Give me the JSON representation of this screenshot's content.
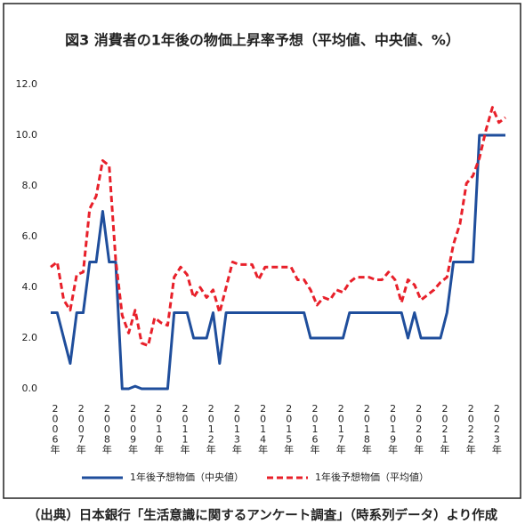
{
  "chart_data": {
    "type": "line",
    "title": "図3 消費者の1年後の物価上昇率予想（平均値、中央値、%）",
    "categories": [
      "2006年",
      null,
      null,
      null,
      "2007年",
      null,
      null,
      null,
      "2008年",
      null,
      null,
      null,
      "2009年",
      null,
      null,
      null,
      "2010年",
      null,
      null,
      null,
      "2011年",
      null,
      null,
      null,
      "2012年",
      null,
      null,
      null,
      "2013年",
      null,
      null,
      null,
      "2014年",
      null,
      null,
      null,
      "2015年",
      null,
      null,
      null,
      "2016年",
      null,
      null,
      null,
      "2017年",
      null,
      null,
      null,
      "2018年",
      null,
      null,
      null,
      "2019年",
      null,
      null,
      null,
      "2020年",
      null,
      null,
      null,
      "2021年",
      null,
      null,
      null,
      "2022年",
      null,
      null,
      null,
      "2023年",
      null,
      null
    ],
    "series": [
      {
        "name": "1年後予想物価（中央値）",
        "color": "#1f4e9c",
        "dashed": false,
        "values": [
          3,
          3,
          2,
          1,
          3,
          3,
          5,
          5,
          7,
          5,
          5,
          0,
          0,
          0.1,
          0,
          0,
          0,
          0,
          0,
          3,
          3,
          3,
          2,
          2,
          2,
          3,
          1,
          3,
          3,
          3,
          3,
          3,
          3,
          3,
          3,
          3,
          3,
          3,
          3,
          3,
          2,
          2,
          2,
          2,
          2,
          2,
          3,
          3,
          3,
          3,
          3,
          3,
          3,
          3,
          3,
          2,
          3,
          2,
          2,
          2,
          2,
          3,
          5,
          5,
          5,
          5,
          10,
          10,
          10,
          10,
          10
        ]
      },
      {
        "name": "1年後予想物価（平均値）",
        "color": "#e8202a",
        "dashed": true,
        "values": [
          4.8,
          5.0,
          3.5,
          3.1,
          4.5,
          4.6,
          7.1,
          7.6,
          9.0,
          8.8,
          5.1,
          2.9,
          2.2,
          3.1,
          1.8,
          1.7,
          2.8,
          2.6,
          2.5,
          4.4,
          4.8,
          4.5,
          3.6,
          4.0,
          3.6,
          3.9,
          3.0,
          4.0,
          5.0,
          4.9,
          4.9,
          4.9,
          4.3,
          4.8,
          4.8,
          4.8,
          4.8,
          4.8,
          4.3,
          4.3,
          3.9,
          3.3,
          3.6,
          3.5,
          3.9,
          3.8,
          4.2,
          4.4,
          4.4,
          4.4,
          4.3,
          4.3,
          4.6,
          4.3,
          3.4,
          4.3,
          4.1,
          3.5,
          3.7,
          3.9,
          4.2,
          4.4,
          5.7,
          6.5,
          8.1,
          8.4,
          9.1,
          10.2,
          11.1,
          10.5,
          10.7
        ]
      }
    ],
    "ylim": [
      0,
      12
    ],
    "yticks": [
      {
        "value": 0,
        "label": "0.0"
      },
      {
        "value": 2,
        "label": "2.0"
      },
      {
        "value": 4,
        "label": "4.0"
      },
      {
        "value": 6,
        "label": "6.0"
      },
      {
        "value": 8,
        "label": "8.0"
      },
      {
        "value": 10,
        "label": "10.0"
      },
      {
        "value": 12,
        "label": "12.0"
      }
    ],
    "grid": false,
    "source": "（出典）日本銀行「生活意識に関するアンケート調査」（時系列データ）より作成"
  }
}
